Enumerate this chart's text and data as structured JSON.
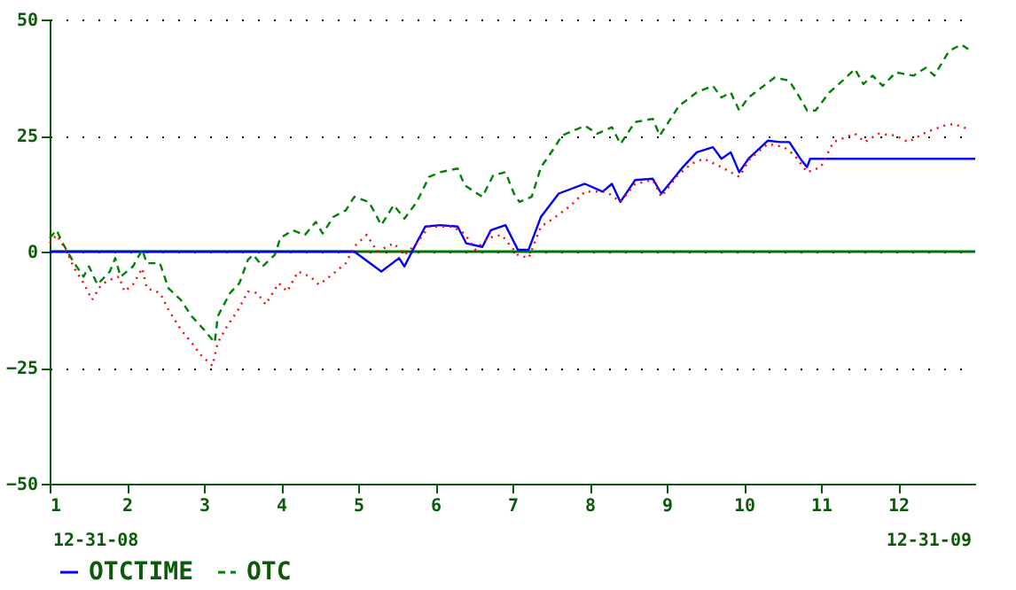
{
  "chart_data": {
    "type": "line",
    "xlim": [
      1,
      13
    ],
    "xticks": [
      1,
      2,
      3,
      4,
      5,
      6,
      7,
      8,
      9,
      10,
      11,
      12
    ],
    "ylim": [
      -50,
      50
    ],
    "yticks": [
      -50,
      -25,
      0,
      25,
      50
    ],
    "grid": "y",
    "legend": "bottom",
    "ref_lines": [
      {
        "axis": "y",
        "value": 0,
        "color": "#007000"
      }
    ],
    "annotations": [
      "12-31-08",
      "12-31-09"
    ],
    "series": [
      {
        "name": "OTCTIME",
        "color": "#0000ff",
        "line_style": "solid",
        "x": [
          1,
          4.95,
          5.3,
          5.53,
          5.6,
          5.71,
          5.87,
          6.06,
          6.29,
          6.4,
          6.61,
          6.72,
          6.91,
          7.07,
          7.21,
          7.37,
          7.6,
          7.94,
          8.17,
          8.29,
          8.4,
          8.59,
          8.82,
          8.93,
          9.21,
          9.39,
          9.6,
          9.71,
          9.83,
          9.94,
          10.06,
          10.31,
          10.47,
          10.59,
          10.75,
          10.82,
          10.86,
          13.0
        ],
        "values": [
          0,
          0,
          -4.3,
          -1.4,
          -3.2,
          0.4,
          5.4,
          5.7,
          5.4,
          1.8,
          1.0,
          4.6,
          5.7,
          0.4,
          0.4,
          7.5,
          12.5,
          14.6,
          12.9,
          14.6,
          10.7,
          15.4,
          15.7,
          12.5,
          18.2,
          21.4,
          22.5,
          20,
          21.4,
          17.1,
          20,
          23.9,
          23.6,
          23.6,
          19.6,
          18.2,
          20,
          20
        ]
      },
      {
        "name": "OTC",
        "color": "#008000",
        "line_style": "dashed",
        "x": [
          1,
          1.09,
          1.16,
          1.23,
          1.32,
          1.44,
          1.51,
          1.62,
          1.78,
          1.85,
          1.92,
          2.08,
          2.2,
          2.26,
          2.43,
          2.54,
          2.7,
          2.84,
          3.0,
          3.14,
          3.18,
          3.34,
          3.46,
          3.57,
          3.64,
          3.76,
          3.92,
          3.99,
          4.15,
          4.31,
          4.45,
          4.54,
          4.68,
          4.84,
          4.95,
          5.14,
          5.3,
          5.46,
          5.6,
          5.76,
          5.92,
          6.06,
          6.29,
          6.38,
          6.61,
          6.75,
          6.91,
          7.02,
          7.09,
          7.25,
          7.37,
          7.55,
          7.64,
          7.94,
          8.1,
          8.29,
          8.4,
          8.59,
          8.82,
          8.91,
          9.16,
          9.39,
          9.6,
          9.71,
          9.83,
          9.94,
          10.06,
          10.29,
          10.4,
          10.59,
          10.75,
          10.82,
          10.93,
          11.11,
          11.28,
          11.44,
          11.55,
          11.67,
          11.8,
          11.97,
          12.2,
          12.36,
          12.47,
          12.66,
          12.82,
          12.91
        ],
        "values": [
          2.9,
          4.6,
          2.1,
          0,
          -2.5,
          -5.4,
          -3.2,
          -7.1,
          -4.3,
          -1.4,
          -5.4,
          -3.2,
          0.4,
          -2.5,
          -2.5,
          -7.9,
          -10.4,
          -13.9,
          -16.8,
          -19.6,
          -13.9,
          -8.9,
          -6.8,
          -1.8,
          -0.7,
          -3.2,
          -0.7,
          2.9,
          4.6,
          3.6,
          6.4,
          3.9,
          7.5,
          8.9,
          11.8,
          10.7,
          5.7,
          10,
          7.1,
          10.7,
          16.1,
          17.1,
          17.9,
          14.3,
          11.8,
          16.4,
          17.1,
          12.5,
          10.7,
          11.8,
          18.2,
          22.5,
          25,
          27.1,
          25.4,
          26.8,
          23.2,
          27.9,
          28.6,
          25,
          31.4,
          34.3,
          35.7,
          33.2,
          34.3,
          30.4,
          33.2,
          36.1,
          37.5,
          36.8,
          32.5,
          30.4,
          30.4,
          34.3,
          36.8,
          39.3,
          36.1,
          37.9,
          35.7,
          38.6,
          37.9,
          39.6,
          37.9,
          43.2,
          44.6,
          43.6
        ]
      },
      {
        "color": "#ff0000",
        "line_style": "dotted",
        "x": [
          1,
          1.09,
          1.21,
          1.32,
          1.44,
          1.55,
          1.67,
          1.78,
          1.9,
          1.97,
          2.08,
          2.2,
          2.26,
          2.43,
          2.54,
          2.7,
          2.84,
          2.95,
          3.11,
          3.18,
          3.3,
          3.46,
          3.57,
          3.69,
          3.8,
          3.97,
          4.08,
          4.22,
          4.38,
          4.49,
          4.66,
          4.84,
          4.95,
          5.11,
          5.25,
          5.46,
          5.6,
          5.76,
          5.92,
          6.22,
          6.38,
          6.52,
          6.68,
          6.86,
          7.07,
          7.21,
          7.37,
          7.53,
          7.76,
          7.94,
          8.22,
          8.4,
          8.59,
          8.82,
          8.93,
          9.14,
          9.32,
          9.48,
          9.71,
          9.94,
          10.08,
          10.31,
          10.52,
          10.66,
          10.82,
          11.0,
          11.16,
          11.44,
          11.57,
          11.74,
          11.97,
          12.13,
          12.36,
          12.59,
          12.72,
          12.91
        ],
        "values": [
          1.8,
          3.6,
          0.4,
          -3.6,
          -6.8,
          -10.4,
          -7.1,
          -6.1,
          -5.4,
          -8.6,
          -7.1,
          -3.6,
          -7.9,
          -8.9,
          -12.5,
          -16.8,
          -19.6,
          -22.1,
          -24.6,
          -19.6,
          -16.1,
          -12.1,
          -8.6,
          -8.9,
          -11.4,
          -6.8,
          -8.6,
          -4.3,
          -5.4,
          -7.1,
          -5,
          -2.5,
          1.1,
          3.6,
          0,
          1.8,
          -0.7,
          1.8,
          5.4,
          5.4,
          3.9,
          0.4,
          2.9,
          3.6,
          -0.7,
          -1.4,
          5.4,
          7.1,
          10,
          12.9,
          12.9,
          10.7,
          14.6,
          15.4,
          11.8,
          16.4,
          18.9,
          20,
          18.2,
          16.1,
          20,
          23.2,
          22.5,
          20.7,
          17.1,
          18.2,
          23.6,
          25.4,
          23.6,
          25.4,
          25,
          23.6,
          25.7,
          27.1,
          27.5,
          26.4
        ]
      }
    ]
  }
}
